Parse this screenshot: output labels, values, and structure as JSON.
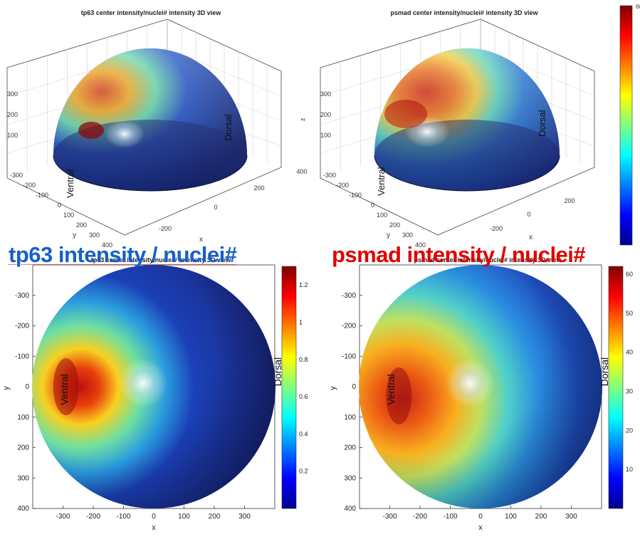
{
  "chart_data": [
    {
      "type": "heatmap",
      "title": "tp63  center intensity/nuclei# intensity 3D view",
      "xlabel": "x",
      "ylabel": "y",
      "zlabel": "",
      "annotations": [
        "Ventral",
        "Dorsal"
      ],
      "x_ticks": [
        "-200",
        "0",
        "200",
        "400"
      ],
      "y_ticks": [
        "-300",
        "-200",
        "-100",
        "0",
        "100",
        "200",
        "300",
        "400"
      ],
      "z_ticks": [
        "100",
        "200",
        "300"
      ],
      "hotspot": {
        "x": -290,
        "y": 10
      }
    },
    {
      "type": "heatmap",
      "title": "psmad  center intensity/nuclei# intensity 3D view",
      "xlabel": "x",
      "ylabel": "y",
      "zlabel": "z",
      "annotations": [
        "Ventral",
        "Dorsal"
      ],
      "x_ticks": [
        "-200",
        "0",
        "200"
      ],
      "y_ticks": [
        "-300",
        "-200",
        "-100",
        "0",
        "100",
        "200",
        "300",
        "400"
      ],
      "z_ticks": [
        "100",
        "200",
        "300"
      ],
      "colorbar_ticks": [
        "10",
        "20",
        "30",
        "40",
        "50",
        "60"
      ],
      "clim": [
        0,
        62
      ],
      "hotspot": {
        "x": -280,
        "y": 30
      }
    },
    {
      "type": "heatmap",
      "title": "tp63  center intensity/nuclei# intensity 3D view",
      "xlabel": "x",
      "ylabel": "y",
      "xlim": [
        -400,
        400
      ],
      "ylim": [
        -400,
        400
      ],
      "x_ticks": [
        "-300",
        "-200",
        "-100",
        "0",
        "100",
        "200",
        "300"
      ],
      "y_ticks": [
        "-300",
        "-200",
        "-100",
        "0",
        "100",
        "200",
        "300",
        "400"
      ],
      "annotations": [
        "Ventral",
        "Dorsal"
      ],
      "colorbar_ticks": [
        "0.2",
        "0.4",
        "0.6",
        "0.8",
        "1",
        "1.2"
      ],
      "clim": [
        0,
        1.3
      ],
      "hotspot": {
        "x": -290,
        "y": 0
      }
    },
    {
      "type": "heatmap",
      "title": "psmad  center intensity/nuclei# intensity 3D view",
      "xlabel": "x",
      "ylabel": "y",
      "xlim": [
        -400,
        400
      ],
      "ylim": [
        -400,
        400
      ],
      "x_ticks": [
        "-300",
        "-200",
        "-100",
        "0",
        "100",
        "200",
        "300"
      ],
      "y_ticks": [
        "-300",
        "-200",
        "-100",
        "0",
        "100",
        "200",
        "300",
        "400"
      ],
      "annotations": [
        "Ventral",
        "Dorsal"
      ],
      "colorbar_ticks": [
        "10",
        "20",
        "30",
        "40",
        "50",
        "60"
      ],
      "clim": [
        0,
        62
      ],
      "hotspot": {
        "x": -270,
        "y": 30
      }
    }
  ],
  "overlay_labels": {
    "left": "tp63 intensity / nuclei#",
    "right": "psmad intensity / nuclei#"
  },
  "colors": {
    "left_label": "#1660c8",
    "right_label": "#e00000"
  }
}
